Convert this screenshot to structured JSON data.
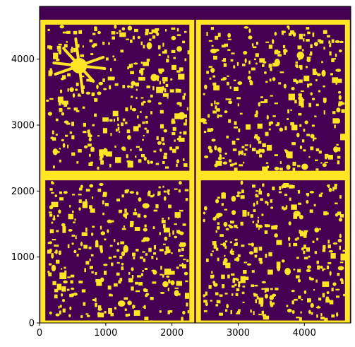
{
  "chart_data": {
    "type": "heatmap",
    "title": "",
    "xlabel": "",
    "ylabel": "",
    "xlim": [
      0,
      4700
    ],
    "ylim": [
      0,
      4800
    ],
    "x_ticks": [
      0,
      1000,
      2000,
      3000,
      4000
    ],
    "y_ticks": [
      0,
      1000,
      2000,
      3000,
      4000
    ],
    "x_tick_labels": [
      "0",
      "1000",
      "2000",
      "3000",
      "4000"
    ],
    "y_tick_labels": [
      "0",
      "1000",
      "2000",
      "3000",
      "4000"
    ],
    "colormap": "viridis",
    "values_present": [
      0,
      1
    ],
    "colors": {
      "background": "#440154",
      "mask": "#fde725"
    },
    "quadrant_frames": [
      {
        "name": "top-left",
        "x": [
          50,
          2300
        ],
        "y": [
          2270,
          4560
        ]
      },
      {
        "name": "top-right",
        "x": [
          2400,
          4650
        ],
        "y": [
          2270,
          4560
        ]
      },
      {
        "name": "bottom-left",
        "x": [
          50,
          2300
        ],
        "y": [
          0,
          2200
        ]
      },
      {
        "name": "bottom-right",
        "x": [
          2400,
          4650
        ],
        "y": [
          0,
          2200
        ]
      }
    ],
    "bright_star": {
      "x": 600,
      "y": 3900
    }
  }
}
